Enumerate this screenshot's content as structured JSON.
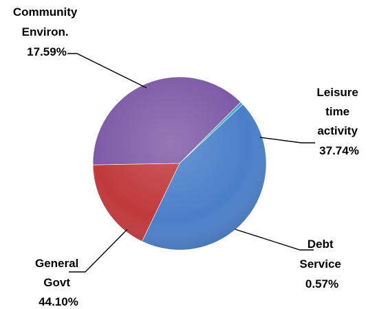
{
  "chart_data": {
    "type": "pie",
    "title": "",
    "slices": [
      {
        "label_lines": [
          "Leisure",
          "time",
          "activity"
        ],
        "value_label": "37.74%",
        "value": 37.74,
        "color": "#7e5aa6"
      },
      {
        "label_lines": [
          "Debt",
          "Service"
        ],
        "value_label": "0.57%",
        "value": 0.57,
        "color": "#46aac5"
      },
      {
        "label_lines": [
          "General",
          "Govt"
        ],
        "value_label": "44.10%",
        "value": 44.1,
        "color": "#4a7fc9"
      },
      {
        "label_lines": [
          "Community",
          "Environ."
        ],
        "value_label": "17.59%",
        "value": 17.59,
        "color": "#c0393b"
      }
    ],
    "legend": false
  }
}
